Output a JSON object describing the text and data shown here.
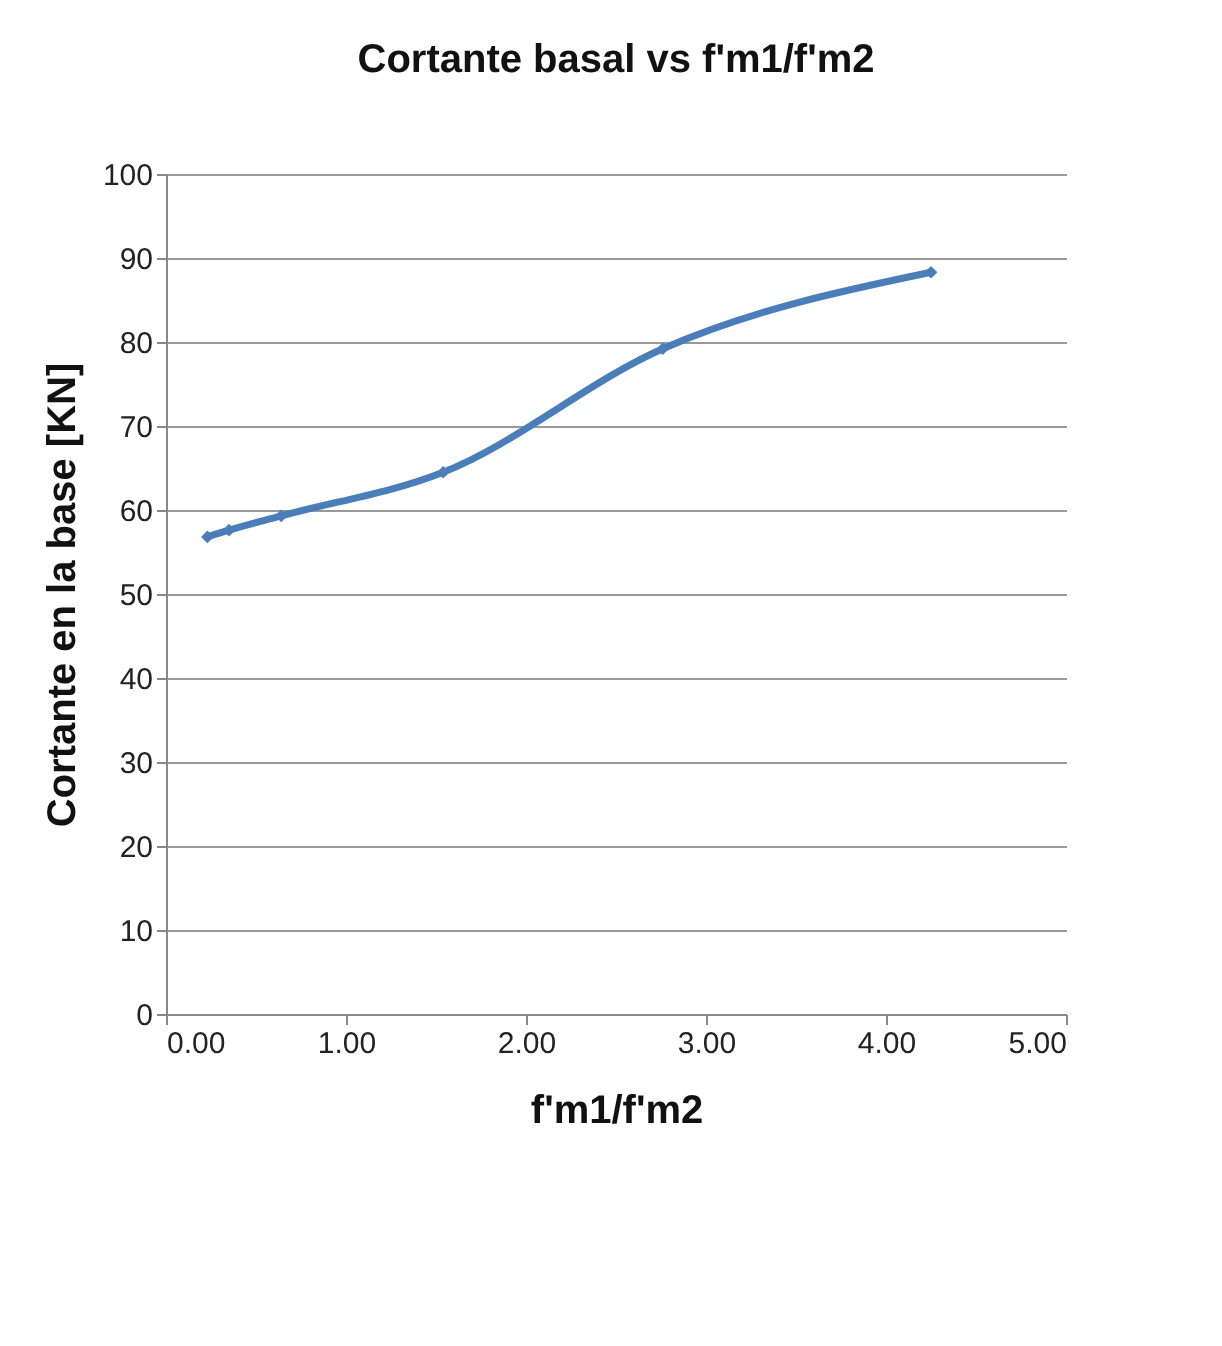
{
  "chart_data": {
    "type": "line",
    "title": "Cortante basal vs f'm1/f'm2",
    "xlabel": "f'm1/f'm2",
    "ylabel": "Cortante en la base [KN]",
    "x": [
      0.23,
      0.35,
      0.64,
      1.54,
      2.76,
      4.25
    ],
    "series": [
      {
        "color": "#4a7ebb",
        "values": [
          56.8,
          57.6,
          59.3,
          64.5,
          79.2,
          88.3
        ]
      }
    ],
    "xlim": [
      0,
      5
    ],
    "xticks": [
      {
        "value": 0,
        "label": "0.00"
      },
      {
        "value": 1,
        "label": "1.00"
      },
      {
        "value": 2,
        "label": "2.00"
      },
      {
        "value": 3,
        "label": "3.00"
      },
      {
        "value": 4,
        "label": "4.00"
      },
      {
        "value": 5,
        "label": "5.00"
      }
    ],
    "ylim": [
      0,
      100
    ],
    "yticks": [
      0,
      10,
      20,
      30,
      40,
      50,
      60,
      70,
      80,
      90,
      100
    ],
    "grid": "y",
    "marker": "diamond",
    "line_style": "solid"
  }
}
